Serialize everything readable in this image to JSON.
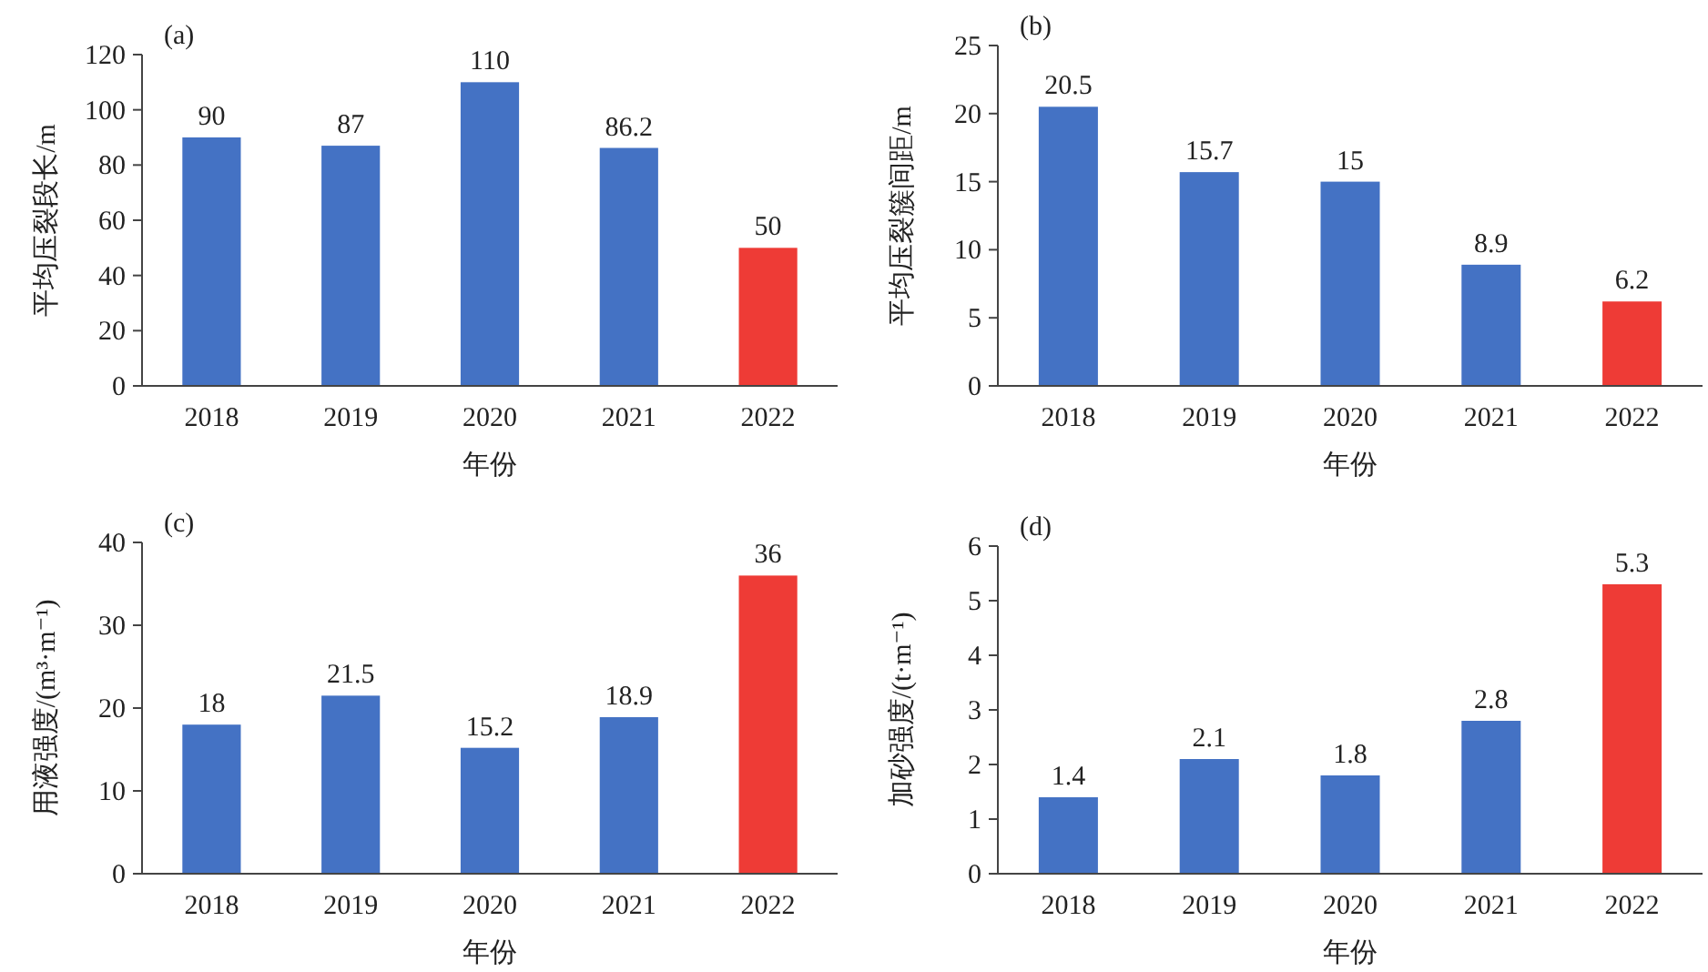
{
  "chart_data": [
    {
      "type": "bar",
      "title": "(a)",
      "xlabel": "年份",
      "ylabel": "平均压裂段长/m",
      "categories": [
        "2018",
        "2019",
        "2020",
        "2021",
        "2022"
      ],
      "values": [
        90,
        87,
        110,
        86.2,
        50
      ],
      "colors": [
        "#4472c4",
        "#4472c4",
        "#4472c4",
        "#4472c4",
        "#ee3b36"
      ],
      "ylim": [
        0,
        120
      ],
      "yticks": [
        0,
        20,
        40,
        60,
        80,
        100,
        120
      ],
      "data_labels": true
    },
    {
      "type": "bar",
      "title": "(b)",
      "xlabel": "年份",
      "ylabel": "平均压裂簇间距/m",
      "categories": [
        "2018",
        "2019",
        "2020",
        "2021",
        "2022"
      ],
      "values": [
        20.5,
        15.7,
        15,
        8.9,
        6.2
      ],
      "colors": [
        "#4472c4",
        "#4472c4",
        "#4472c4",
        "#4472c4",
        "#ee3b36"
      ],
      "ylim": [
        0,
        25
      ],
      "yticks": [
        0,
        5,
        10,
        15,
        20,
        25
      ],
      "data_labels": true
    },
    {
      "type": "bar",
      "title": "(c)",
      "xlabel": "年份",
      "ylabel": "用液强度/(m³·m⁻¹)",
      "categories": [
        "2018",
        "2019",
        "2020",
        "2021",
        "2022"
      ],
      "values": [
        18,
        21.5,
        15.2,
        18.9,
        36
      ],
      "colors": [
        "#4472c4",
        "#4472c4",
        "#4472c4",
        "#4472c4",
        "#ee3b36"
      ],
      "ylim": [
        0,
        40
      ],
      "yticks": [
        0,
        10,
        20,
        30,
        40
      ],
      "data_labels": true
    },
    {
      "type": "bar",
      "title": "(d)",
      "xlabel": "年份",
      "ylabel": "加砂强度/(t·m⁻¹)",
      "categories": [
        "2018",
        "2019",
        "2020",
        "2021",
        "2022"
      ],
      "values": [
        1.4,
        2.1,
        1.8,
        2.8,
        5.3
      ],
      "colors": [
        "#4472c4",
        "#4472c4",
        "#4472c4",
        "#4472c4",
        "#ee3b36"
      ],
      "ylim": [
        0,
        6
      ],
      "yticks": [
        0,
        1,
        2,
        3,
        4,
        5,
        6
      ],
      "data_labels": true
    }
  ]
}
